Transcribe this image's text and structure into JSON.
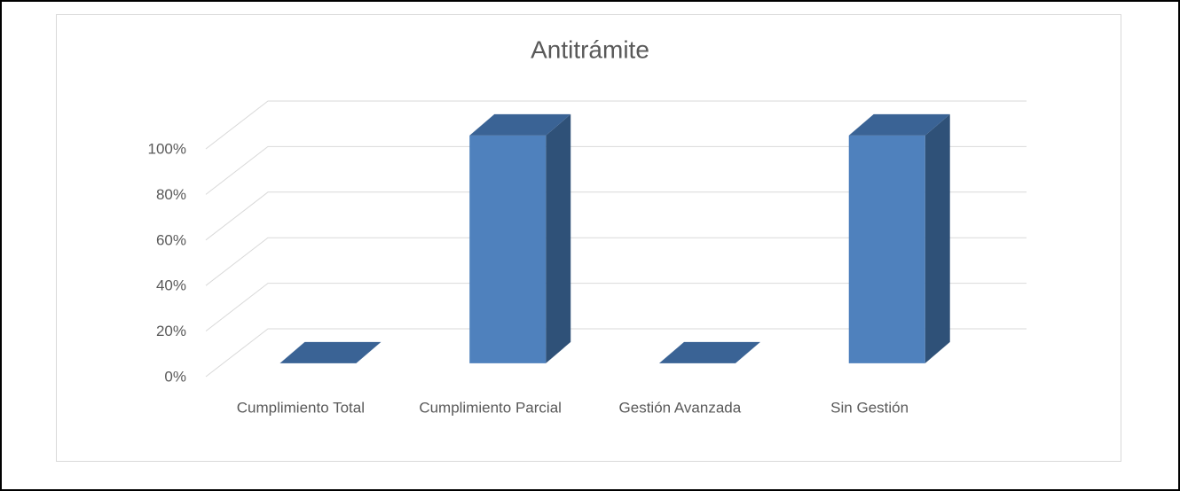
{
  "chart_data": {
    "type": "bar3d",
    "title": "Antitrámite",
    "categories": [
      "Cumplimiento Total",
      "Cumplimiento Parcial",
      "Gestión Avanzada",
      "Sin Gestión"
    ],
    "values": [
      0,
      100,
      0,
      100
    ],
    "color": "#4f81bd",
    "ylim": [
      0,
      100
    ],
    "yticks": [
      {
        "value": 0,
        "label": "0%"
      },
      {
        "value": 20,
        "label": "20%"
      },
      {
        "value": 40,
        "label": "40%"
      },
      {
        "value": 60,
        "label": "60%"
      },
      {
        "value": 80,
        "label": "80%"
      },
      {
        "value": 100,
        "label": "100%"
      }
    ],
    "grid": true
  }
}
